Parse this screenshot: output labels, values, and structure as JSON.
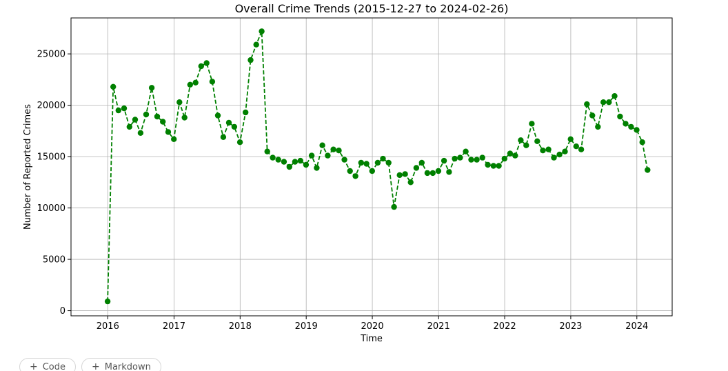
{
  "chart_data": {
    "type": "line",
    "title": "Overall Crime Trends (2015-12-27 to 2024-02-26)",
    "xlabel": "Time",
    "ylabel": "Number of Reported Crimes",
    "x_ticks": [
      "2016",
      "2017",
      "2018",
      "2019",
      "2020",
      "2021",
      "2022",
      "2023",
      "2024"
    ],
    "y_ticks": [
      0,
      5000,
      10000,
      15000,
      20000,
      25000
    ],
    "ylim": [
      -500,
      28500
    ],
    "xlim": [
      "2015-06-12",
      "2024-07-14"
    ],
    "grid": true,
    "line_style": "dashed",
    "marker": "circle",
    "color": "#008000",
    "series": [
      {
        "x": [
          "2015-12-31",
          "2016-01-31",
          "2016-02-29",
          "2016-03-31",
          "2016-04-30",
          "2016-05-31",
          "2016-06-30",
          "2016-07-31",
          "2016-08-31",
          "2016-09-30",
          "2016-10-31",
          "2016-11-30",
          "2016-12-31",
          "2017-01-31",
          "2017-02-28",
          "2017-03-31",
          "2017-04-30",
          "2017-05-31",
          "2017-06-30",
          "2017-07-31",
          "2017-08-31",
          "2017-09-30",
          "2017-10-31",
          "2017-11-30",
          "2017-12-31",
          "2018-01-31",
          "2018-02-28",
          "2018-03-31",
          "2018-04-30",
          "2018-05-31",
          "2018-06-30",
          "2018-07-31",
          "2018-08-31",
          "2018-09-30",
          "2018-10-31",
          "2018-11-30",
          "2018-12-31",
          "2019-01-31",
          "2019-02-28",
          "2019-03-31",
          "2019-04-30",
          "2019-05-31",
          "2019-06-30",
          "2019-07-31",
          "2019-08-31",
          "2019-09-30",
          "2019-10-31",
          "2019-11-30",
          "2019-12-31",
          "2020-01-31",
          "2020-02-29",
          "2020-03-31",
          "2020-04-30",
          "2020-05-31",
          "2020-06-30",
          "2020-07-31",
          "2020-08-31",
          "2020-09-30",
          "2020-10-31",
          "2020-11-30",
          "2020-12-31",
          "2021-01-31",
          "2021-02-28",
          "2021-03-31",
          "2021-04-30",
          "2021-05-31",
          "2021-06-30",
          "2021-07-31",
          "2021-08-31",
          "2021-09-30",
          "2021-10-31",
          "2021-11-30",
          "2021-12-31",
          "2022-01-31",
          "2022-02-28",
          "2022-03-31",
          "2022-04-30",
          "2022-05-31",
          "2022-06-30",
          "2022-07-31",
          "2022-08-31",
          "2022-09-30",
          "2022-10-31",
          "2022-11-30",
          "2022-12-31",
          "2023-01-31",
          "2023-02-28",
          "2023-03-31",
          "2023-04-30",
          "2023-05-31",
          "2023-06-30",
          "2023-07-31",
          "2023-08-31",
          "2023-09-30",
          "2023-10-31",
          "2023-11-30",
          "2023-12-31",
          "2024-01-31",
          "2024-02-29"
        ],
        "values": [
          900,
          21800,
          19500,
          19700,
          17900,
          18600,
          17300,
          19100,
          21700,
          18900,
          18400,
          17400,
          16700,
          20300,
          18800,
          22000,
          22200,
          23800,
          24100,
          22300,
          19000,
          16900,
          18300,
          17900,
          16400,
          19300,
          24400,
          25900,
          27200,
          15500,
          14900,
          14700,
          14500,
          14000,
          14500,
          14600,
          14200,
          15100,
          13900,
          16100,
          15100,
          15700,
          15600,
          14700,
          13600,
          13100,
          14400,
          14300,
          13600,
          14400,
          14800,
          14400,
          10100,
          13200,
          13300,
          12500,
          13900,
          14400,
          13400,
          13400,
          13600,
          14600,
          13500,
          14800,
          14900,
          15500,
          14700,
          14700,
          14900,
          14200,
          14100,
          14100,
          14800,
          15300,
          15100,
          16600,
          16100,
          18200,
          16500,
          15600,
          15700,
          14900,
          15200,
          15500,
          16700,
          16000,
          15700,
          20100,
          19000,
          17900,
          20300,
          20300,
          20900,
          18900,
          18200,
          17900,
          17600,
          16400,
          13700
        ]
      }
    ]
  },
  "toolbar": {
    "code_label": "Code",
    "markdown_label": "Markdown"
  }
}
